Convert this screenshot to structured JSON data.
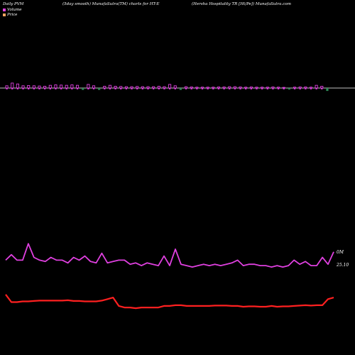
{
  "header": {
    "left": "Daily PVM",
    "center": "(5day smooth) MunafaSutra(TM) charts for HT-E",
    "right": "(Hersha Hospitality TR [Ht/Pe]) MunafaSutra.com"
  },
  "legend": {
    "items": [
      {
        "label": "Volume",
        "color": "#e040e0"
      },
      {
        "label": "Price",
        "color": "#f4a460"
      }
    ]
  },
  "chart_data": {
    "type": "line",
    "title": "",
    "grid": false,
    "colors": {
      "up": "#e040e0",
      "down": "#2e8b57",
      "volume_line": "#e040e0",
      "price_line": "#ff2020",
      "baseline": "#ffffff"
    },
    "axis_labels": {
      "volume_right": "0M",
      "price_right": "25.10"
    },
    "volume_bars": [
      {
        "v": 1.0,
        "up": true
      },
      {
        "v": 2.2,
        "up": true
      },
      {
        "v": 1.8,
        "up": true
      },
      {
        "v": 1.0,
        "up": true
      },
      {
        "v": 1.1,
        "up": true
      },
      {
        "v": 1.0,
        "up": true
      },
      {
        "v": 0.9,
        "up": true
      },
      {
        "v": 0.8,
        "up": true
      },
      {
        "v": 1.2,
        "up": true
      },
      {
        "v": 1.4,
        "up": true
      },
      {
        "v": 1.3,
        "up": true
      },
      {
        "v": 1.2,
        "up": true
      },
      {
        "v": 1.4,
        "up": true
      },
      {
        "v": 1.2,
        "up": true
      },
      {
        "v": 1.0,
        "up": false
      },
      {
        "v": 1.6,
        "up": true
      },
      {
        "v": 1.0,
        "up": true
      },
      {
        "v": 1.0,
        "up": false
      },
      {
        "v": 0.8,
        "up": true
      },
      {
        "v": 1.2,
        "up": true
      },
      {
        "v": 0.8,
        "up": true
      },
      {
        "v": 0.7,
        "up": true
      },
      {
        "v": 0.6,
        "up": true
      },
      {
        "v": 0.6,
        "up": true
      },
      {
        "v": 0.7,
        "up": true
      },
      {
        "v": 0.6,
        "up": true
      },
      {
        "v": 0.6,
        "up": true
      },
      {
        "v": 0.6,
        "up": true
      },
      {
        "v": 0.8,
        "up": true
      },
      {
        "v": 0.6,
        "up": true
      },
      {
        "v": 1.6,
        "up": true
      },
      {
        "v": 1.0,
        "up": true
      },
      {
        "v": 1.0,
        "up": false
      },
      {
        "v": 0.6,
        "up": true
      },
      {
        "v": 0.5,
        "up": true
      },
      {
        "v": 0.4,
        "up": true
      },
      {
        "v": 0.4,
        "up": true
      },
      {
        "v": 0.4,
        "up": true
      },
      {
        "v": 0.4,
        "up": true
      },
      {
        "v": 0.5,
        "up": true
      },
      {
        "v": 0.5,
        "up": true
      },
      {
        "v": 0.6,
        "up": true
      },
      {
        "v": 0.6,
        "up": true
      },
      {
        "v": 0.5,
        "up": true
      },
      {
        "v": 0.4,
        "up": true
      },
      {
        "v": 0.5,
        "up": true
      },
      {
        "v": 0.4,
        "up": true
      },
      {
        "v": 0.4,
        "up": true
      },
      {
        "v": 0.4,
        "up": true
      },
      {
        "v": 0.5,
        "up": true
      },
      {
        "v": 0.4,
        "up": true
      },
      {
        "v": 0.3,
        "up": true
      },
      {
        "v": 0.2,
        "up": false
      },
      {
        "v": 0.4,
        "up": true
      },
      {
        "v": 0.5,
        "up": true
      },
      {
        "v": 0.5,
        "up": true
      },
      {
        "v": 0.4,
        "up": true
      },
      {
        "v": 1.2,
        "up": true
      },
      {
        "v": 0.8,
        "up": true
      },
      {
        "v": 1.6,
        "up": false
      }
    ],
    "volume_line": [
      6,
      10,
      6,
      6,
      18,
      8,
      6,
      5,
      8,
      6,
      6,
      4,
      8,
      6,
      9,
      5,
      4,
      11,
      4,
      5,
      6,
      6,
      3,
      4,
      2,
      4,
      3,
      2,
      9,
      2,
      14,
      3,
      2,
      1,
      2,
      3,
      2,
      3,
      2,
      3,
      4,
      6,
      2,
      3,
      3,
      2,
      2,
      1,
      2,
      1,
      2,
      6,
      3,
      5,
      2,
      2,
      8,
      3,
      12
    ],
    "price_line": [
      25.6,
      24.6,
      24.6,
      24.7,
      24.7,
      24.75,
      24.8,
      24.8,
      24.8,
      24.8,
      24.8,
      24.85,
      24.75,
      24.75,
      24.7,
      24.7,
      24.7,
      24.8,
      25.0,
      25.2,
      24.1,
      23.9,
      23.9,
      23.8,
      23.9,
      23.9,
      23.9,
      23.9,
      24.1,
      24.1,
      24.2,
      24.2,
      24.1,
      24.1,
      24.1,
      24.1,
      24.1,
      24.15,
      24.15,
      24.15,
      24.1,
      24.1,
      24.0,
      24.05,
      24.05,
      24.0,
      24.0,
      24.1,
      24.0,
      24.05,
      24.05,
      24.1,
      24.15,
      24.2,
      24.15,
      24.2,
      24.2,
      25.0,
      25.2
    ],
    "price_ylim": [
      20,
      40
    ],
    "volume_ylim": [
      0,
      30
    ]
  }
}
